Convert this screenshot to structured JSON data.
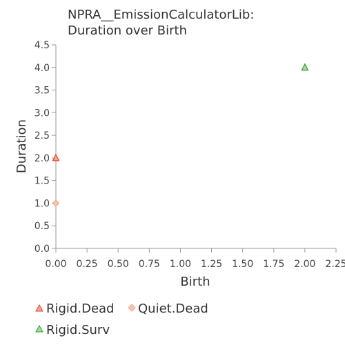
{
  "chart_data": {
    "type": "scatter",
    "title_lines": [
      "NPRA__EmissionCalculatorLib:",
      "Duration over Birth"
    ],
    "xlabel": "Birth",
    "ylabel": "Duration",
    "xlim": [
      0,
      2.25
    ],
    "ylim": [
      0,
      4.5
    ],
    "x_ticks": [
      "0.00",
      "0.25",
      "0.50",
      "0.75",
      "1.00",
      "1.25",
      "1.50",
      "1.75",
      "2.00",
      "2.25"
    ],
    "y_ticks": [
      "0.0",
      "0.5",
      "1.0",
      "1.5",
      "2.0",
      "2.5",
      "3.0",
      "3.5",
      "4.0",
      "4.5"
    ],
    "grid": false,
    "legend_placement": "bottom",
    "series": [
      {
        "name": "Rigid.Dead",
        "marker": "triangle",
        "color": "#e8412a",
        "points": [
          {
            "x": 0,
            "y": 2
          }
        ]
      },
      {
        "name": "Quiet.Dead",
        "marker": "diamond",
        "color": "#f4a582",
        "points": [
          {
            "x": 0,
            "y": 1
          }
        ]
      },
      {
        "name": "Rigid.Surv",
        "marker": "triangle",
        "color": "#2ca02c",
        "points": [
          {
            "x": 2,
            "y": 4
          }
        ]
      }
    ]
  }
}
